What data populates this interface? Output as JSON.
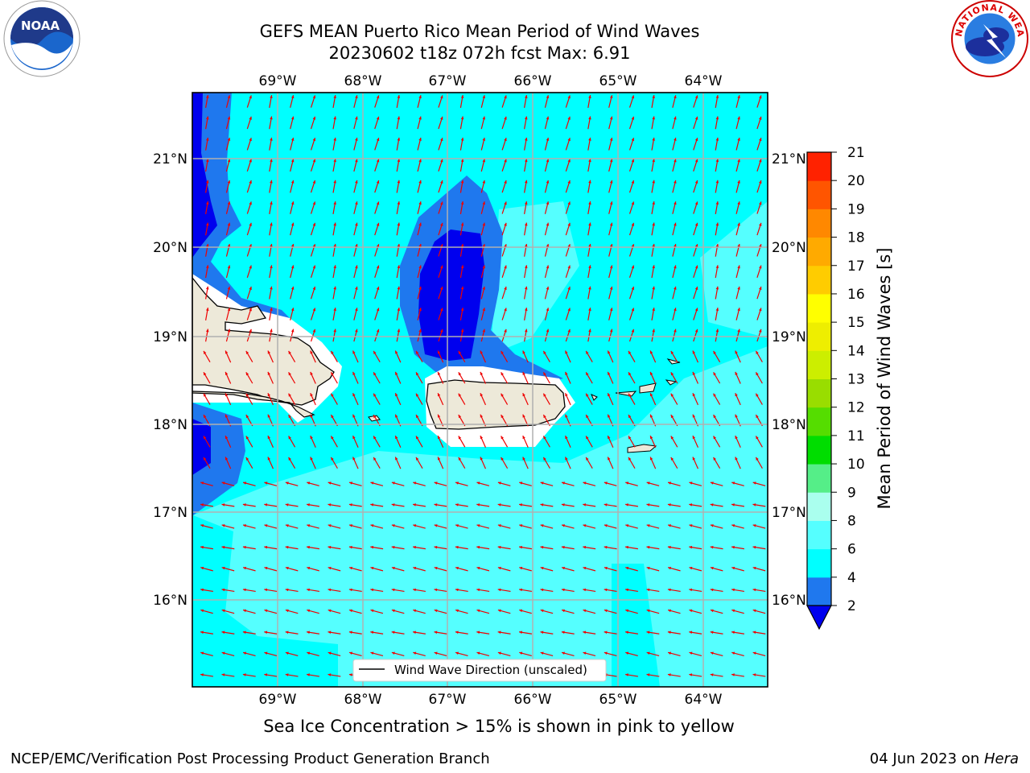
{
  "title": {
    "line1": "GEFS MEAN Puerto Rico Mean Period of Wind Waves",
    "line2": "20230602 t18z 072h fcst   Max: 6.91"
  },
  "map": {
    "lon_labels": [
      "69°W",
      "68°W",
      "67°W",
      "66°W",
      "65°W",
      "64°W"
    ],
    "lat_labels": [
      "21°N",
      "20°N",
      "19°N",
      "18°N",
      "17°N",
      "16°N"
    ],
    "legend_label": "Wind Wave Direction (unscaled)",
    "colors": {
      "dark_blue": "#0000ee",
      "blue": "#1f78ee",
      "cyan": "#00ffff",
      "light_cyan": "#55ffff",
      "land": "#ede9d9",
      "arrow": "#ee0000"
    }
  },
  "colorbar": {
    "label": "Mean Period of Wind Waves [s]",
    "ticks": [
      "2",
      "4",
      "6",
      "8",
      "9",
      "10",
      "11",
      "12",
      "13",
      "14",
      "15",
      "16",
      "17",
      "18",
      "19",
      "20",
      "21"
    ],
    "colors": [
      "#1f78ee",
      "#00ffff",
      "#55ffff",
      "#aaffee",
      "#55ee88",
      "#00dd00",
      "#55dd00",
      "#99dd00",
      "#ccee00",
      "#eeee00",
      "#ffff00",
      "#ffcc00",
      "#ffaa00",
      "#ff8800",
      "#ff5500",
      "#ff2200",
      "#ee0000"
    ]
  },
  "ice_note": "Sea Ice Concentration > 15% is shown in pink to yellow",
  "footer": {
    "credit": "NCEP/EMC/Verification Post Processing Product Generation Branch",
    "date": "04 Jun 2023 on ",
    "host": "Hera"
  },
  "logos": {
    "noaa_text": "NOAA",
    "nws_text": "NATIONAL WEATHER SERVICE"
  }
}
